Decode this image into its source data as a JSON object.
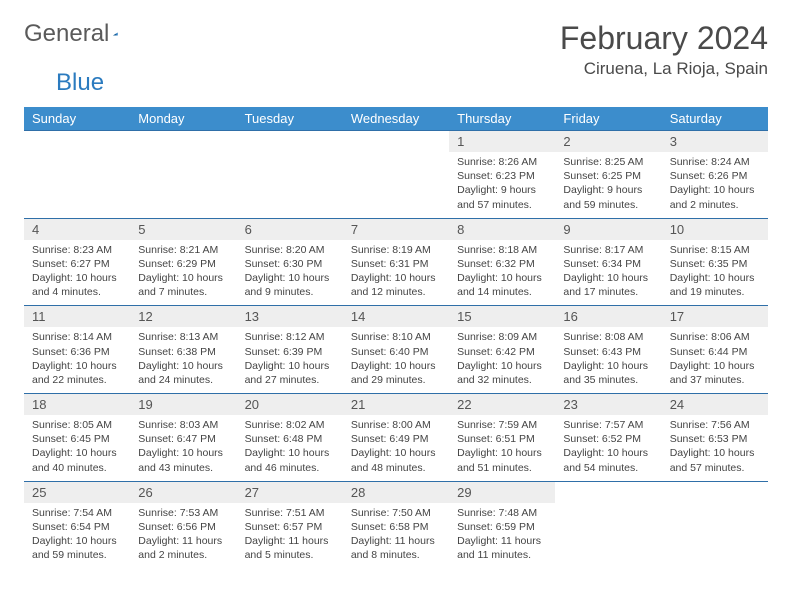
{
  "logo": {
    "text1": "General",
    "text2": "Blue"
  },
  "title": "February 2024",
  "location": "Ciruena, La Rioja, Spain",
  "colors": {
    "header_bg": "#3c8dcc",
    "header_text": "#ffffff",
    "daynum_bg": "#eeeeee",
    "row_border": "#2f6fa8",
    "logo_gray": "#5a5a5a",
    "logo_blue": "#2b7bbf"
  },
  "weekdays": [
    "Sunday",
    "Monday",
    "Tuesday",
    "Wednesday",
    "Thursday",
    "Friday",
    "Saturday"
  ],
  "weeks": [
    [
      null,
      null,
      null,
      null,
      {
        "n": "1",
        "sr": "8:26 AM",
        "ss": "6:23 PM",
        "dl": "9 hours and 57 minutes."
      },
      {
        "n": "2",
        "sr": "8:25 AM",
        "ss": "6:25 PM",
        "dl": "9 hours and 59 minutes."
      },
      {
        "n": "3",
        "sr": "8:24 AM",
        "ss": "6:26 PM",
        "dl": "10 hours and 2 minutes."
      }
    ],
    [
      {
        "n": "4",
        "sr": "8:23 AM",
        "ss": "6:27 PM",
        "dl": "10 hours and 4 minutes."
      },
      {
        "n": "5",
        "sr": "8:21 AM",
        "ss": "6:29 PM",
        "dl": "10 hours and 7 minutes."
      },
      {
        "n": "6",
        "sr": "8:20 AM",
        "ss": "6:30 PM",
        "dl": "10 hours and 9 minutes."
      },
      {
        "n": "7",
        "sr": "8:19 AM",
        "ss": "6:31 PM",
        "dl": "10 hours and 12 minutes."
      },
      {
        "n": "8",
        "sr": "8:18 AM",
        "ss": "6:32 PM",
        "dl": "10 hours and 14 minutes."
      },
      {
        "n": "9",
        "sr": "8:17 AM",
        "ss": "6:34 PM",
        "dl": "10 hours and 17 minutes."
      },
      {
        "n": "10",
        "sr": "8:15 AM",
        "ss": "6:35 PM",
        "dl": "10 hours and 19 minutes."
      }
    ],
    [
      {
        "n": "11",
        "sr": "8:14 AM",
        "ss": "6:36 PM",
        "dl": "10 hours and 22 minutes."
      },
      {
        "n": "12",
        "sr": "8:13 AM",
        "ss": "6:38 PM",
        "dl": "10 hours and 24 minutes."
      },
      {
        "n": "13",
        "sr": "8:12 AM",
        "ss": "6:39 PM",
        "dl": "10 hours and 27 minutes."
      },
      {
        "n": "14",
        "sr": "8:10 AM",
        "ss": "6:40 PM",
        "dl": "10 hours and 29 minutes."
      },
      {
        "n": "15",
        "sr": "8:09 AM",
        "ss": "6:42 PM",
        "dl": "10 hours and 32 minutes."
      },
      {
        "n": "16",
        "sr": "8:08 AM",
        "ss": "6:43 PM",
        "dl": "10 hours and 35 minutes."
      },
      {
        "n": "17",
        "sr": "8:06 AM",
        "ss": "6:44 PM",
        "dl": "10 hours and 37 minutes."
      }
    ],
    [
      {
        "n": "18",
        "sr": "8:05 AM",
        "ss": "6:45 PM",
        "dl": "10 hours and 40 minutes."
      },
      {
        "n": "19",
        "sr": "8:03 AM",
        "ss": "6:47 PM",
        "dl": "10 hours and 43 minutes."
      },
      {
        "n": "20",
        "sr": "8:02 AM",
        "ss": "6:48 PM",
        "dl": "10 hours and 46 minutes."
      },
      {
        "n": "21",
        "sr": "8:00 AM",
        "ss": "6:49 PM",
        "dl": "10 hours and 48 minutes."
      },
      {
        "n": "22",
        "sr": "7:59 AM",
        "ss": "6:51 PM",
        "dl": "10 hours and 51 minutes."
      },
      {
        "n": "23",
        "sr": "7:57 AM",
        "ss": "6:52 PM",
        "dl": "10 hours and 54 minutes."
      },
      {
        "n": "24",
        "sr": "7:56 AM",
        "ss": "6:53 PM",
        "dl": "10 hours and 57 minutes."
      }
    ],
    [
      {
        "n": "25",
        "sr": "7:54 AM",
        "ss": "6:54 PM",
        "dl": "10 hours and 59 minutes."
      },
      {
        "n": "26",
        "sr": "7:53 AM",
        "ss": "6:56 PM",
        "dl": "11 hours and 2 minutes."
      },
      {
        "n": "27",
        "sr": "7:51 AM",
        "ss": "6:57 PM",
        "dl": "11 hours and 5 minutes."
      },
      {
        "n": "28",
        "sr": "7:50 AM",
        "ss": "6:58 PM",
        "dl": "11 hours and 8 minutes."
      },
      {
        "n": "29",
        "sr": "7:48 AM",
        "ss": "6:59 PM",
        "dl": "11 hours and 11 minutes."
      },
      null,
      null
    ]
  ],
  "labels": {
    "sunrise": "Sunrise: ",
    "sunset": "Sunset: ",
    "daylight": "Daylight: "
  }
}
